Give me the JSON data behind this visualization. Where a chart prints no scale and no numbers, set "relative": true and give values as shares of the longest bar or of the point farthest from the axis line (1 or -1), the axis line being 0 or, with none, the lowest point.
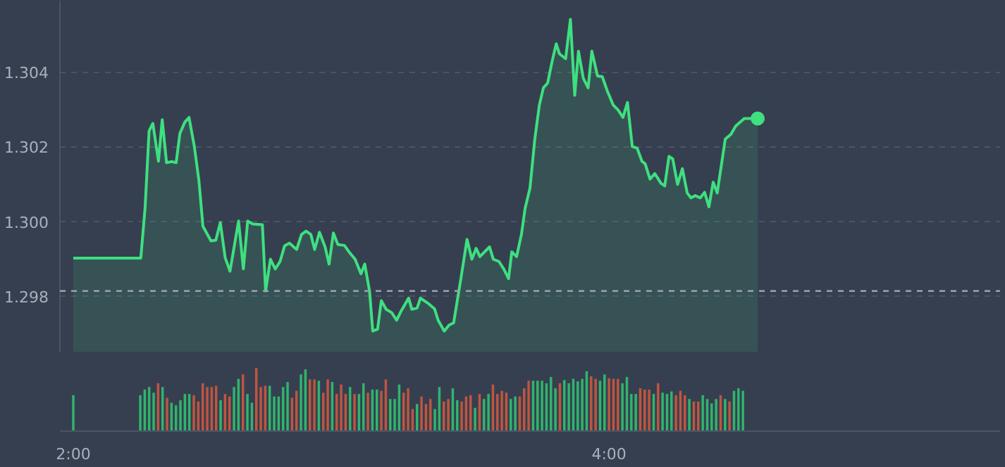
{
  "chart_data": [
    {
      "type": "area",
      "xlim": [
        1.95,
        5.46
      ],
      "ylim": [
        1.2965,
        1.3059
      ],
      "yticks": [
        {
          "value": 1.298,
          "label": "1.298"
        },
        {
          "value": 1.3,
          "label": "1.300"
        },
        {
          "value": 1.302,
          "label": "1.302"
        },
        {
          "value": 1.304,
          "label": "1.304"
        }
      ],
      "tick_labels": "y",
      "grid": "y",
      "ref_lines": [
        {
          "axis": "y",
          "value": 1.29814,
          "color": "#9aa3b2",
          "line_style": "dashed"
        }
      ],
      "series": [
        {
          "type": "area",
          "color": "#3ee07f",
          "x": [
            2.0,
            2.252,
            2.268,
            2.283,
            2.297,
            2.318,
            2.332,
            2.348,
            2.368,
            2.384,
            2.398,
            2.416,
            2.432,
            2.452,
            2.469,
            2.484,
            2.514,
            2.532,
            2.549,
            2.567,
            2.585,
            2.617,
            2.635,
            2.651,
            2.67,
            2.706,
            2.718,
            2.736,
            2.754,
            2.772,
            2.789,
            2.807,
            2.834,
            2.852,
            2.869,
            2.887,
            2.901,
            2.919,
            2.94,
            2.955,
            2.971,
            2.988,
            3.012,
            3.029,
            3.052,
            3.074,
            3.088,
            3.106,
            3.118,
            3.136,
            3.15,
            3.168,
            3.189,
            3.207,
            3.225,
            3.252,
            3.264,
            3.284,
            3.296,
            3.323,
            3.349,
            3.362,
            3.385,
            3.403,
            3.42,
            3.447,
            3.47,
            3.488,
            3.504,
            3.518,
            3.554,
            3.568,
            3.589,
            3.607,
            3.625,
            3.637,
            3.655,
            3.673,
            3.687,
            3.705,
            3.723,
            3.74,
            3.755,
            3.771,
            3.788,
            3.803,
            3.815,
            3.838,
            3.856,
            3.872,
            3.886,
            3.904,
            3.922,
            3.936,
            3.957,
            3.975,
            3.993,
            4.016,
            4.034,
            4.052,
            4.069,
            4.087,
            4.105,
            4.123,
            4.135,
            4.153,
            4.171,
            4.194,
            4.208,
            4.224,
            4.238,
            4.256,
            4.274,
            4.292,
            4.306,
            4.322,
            4.341,
            4.357,
            4.373,
            4.389,
            4.404,
            4.434,
            4.455,
            4.473,
            4.505,
            4.532,
            4.555
          ],
          "values": [
            1.29902,
            1.29902,
            1.30036,
            1.30242,
            1.30262,
            1.30161,
            1.30272,
            1.30157,
            1.3016,
            1.30157,
            1.30235,
            1.30265,
            1.30278,
            1.302,
            1.30109,
            1.29987,
            1.29948,
            1.2995,
            1.29997,
            1.29903,
            1.29867,
            1.30001,
            1.29873,
            1.30001,
            1.29993,
            1.29991,
            1.29814,
            1.29899,
            1.29873,
            1.29893,
            1.29935,
            1.29942,
            1.29925,
            1.29965,
            1.29974,
            1.29965,
            1.29925,
            1.29971,
            1.29932,
            1.29886,
            1.29969,
            1.29938,
            1.29936,
            1.29919,
            1.29899,
            1.2986,
            1.29886,
            1.29814,
            1.29707,
            1.29712,
            1.29788,
            1.29765,
            1.29756,
            1.29736,
            1.29762,
            1.29795,
            1.29765,
            1.29769,
            1.29795,
            1.29782,
            1.29766,
            1.29736,
            1.29707,
            1.29723,
            1.29729,
            1.29847,
            1.29952,
            1.29899,
            1.29928,
            1.29906,
            1.29932,
            1.29899,
            1.29893,
            1.29873,
            1.29847,
            1.29919,
            1.29906,
            1.29965,
            1.30036,
            1.30089,
            1.3022,
            1.30311,
            1.30357,
            1.3037,
            1.30429,
            1.30475,
            1.30448,
            1.30435,
            1.3054,
            1.30337,
            1.30455,
            1.30383,
            1.30357,
            1.30455,
            1.30389,
            1.30387,
            1.3035,
            1.30311,
            1.30298,
            1.30278,
            1.30318,
            1.302,
            1.30196,
            1.30161,
            1.30154,
            1.30113,
            1.30128,
            1.30102,
            1.30095,
            1.30174,
            1.30167,
            1.30099,
            1.30141,
            1.30076,
            1.30063,
            1.30069,
            1.30063,
            1.30078,
            1.30039,
            1.30105,
            1.30076,
            1.3022,
            1.30233,
            1.30255,
            1.30275,
            1.30275,
            1.30275
          ]
        },
        {
          "type": "scatter",
          "color": "#3ee07f",
          "marker": "circle",
          "x": [
            4.555
          ],
          "values": [
            1.30275
          ]
        }
      ]
    },
    {
      "type": "bar",
      "relative": true,
      "xlim": [
        1.95,
        5.46
      ],
      "xticks": [
        {
          "value": 2,
          "label": "2:00"
        },
        {
          "value": 4,
          "label": "4:00"
        }
      ],
      "tick_labels": "x",
      "x": [
        2.0,
        2.25,
        2.2667,
        2.2833,
        2.3,
        2.3167,
        2.3333,
        2.35,
        2.3667,
        2.3833,
        2.4,
        2.4167,
        2.4333,
        2.45,
        2.4667,
        2.4833,
        2.5,
        2.5167,
        2.5333,
        2.55,
        2.5667,
        2.5833,
        2.6,
        2.6167,
        2.6333,
        2.65,
        2.6667,
        2.6833,
        2.7,
        2.7167,
        2.7333,
        2.75,
        2.7667,
        2.7833,
        2.8,
        2.8167,
        2.8333,
        2.85,
        2.8667,
        2.8833,
        2.9,
        2.9167,
        2.9333,
        2.95,
        2.9667,
        2.9833,
        3.0,
        3.0167,
        3.0333,
        3.05,
        3.0667,
        3.0833,
        3.1,
        3.1167,
        3.1333,
        3.15,
        3.1667,
        3.1833,
        3.2,
        3.2167,
        3.2333,
        3.25,
        3.2667,
        3.2833,
        3.3,
        3.3167,
        3.3333,
        3.35,
        3.3667,
        3.3833,
        3.4,
        3.4167,
        3.4333,
        3.45,
        3.4667,
        3.4833,
        3.5,
        3.5167,
        3.5333,
        3.55,
        3.5667,
        3.5833,
        3.6,
        3.6167,
        3.6333,
        3.65,
        3.6667,
        3.6833,
        3.7,
        3.7167,
        3.7333,
        3.75,
        3.7667,
        3.7833,
        3.8,
        3.8167,
        3.8333,
        3.85,
        3.8667,
        3.8833,
        3.9,
        3.9167,
        3.9333,
        3.95,
        3.9667,
        3.9833,
        4.0,
        4.0167,
        4.0333,
        4.05,
        4.0667,
        4.0833,
        4.1,
        4.1167,
        4.1333,
        4.15,
        4.1667,
        4.1833,
        4.2,
        4.2167,
        4.2333,
        4.25,
        4.2667,
        4.2833,
        4.3,
        4.3167,
        4.3333,
        4.35,
        4.3667,
        4.3833,
        4.4,
        4.4167,
        4.4333,
        4.45,
        4.4667,
        4.4833,
        4.5
      ],
      "values": [
        0.57,
        0.57,
        0.66,
        0.7,
        0.61,
        0.76,
        0.7,
        0.53,
        0.45,
        0.41,
        0.49,
        0.59,
        0.59,
        0.57,
        0.47,
        0.76,
        0.7,
        0.7,
        0.72,
        0.49,
        0.59,
        0.55,
        0.7,
        0.83,
        0.9,
        0.59,
        0.45,
        1.0,
        0.7,
        0.72,
        0.72,
        0.55,
        0.55,
        0.7,
        0.78,
        0.53,
        0.64,
        0.9,
        0.98,
        0.82,
        0.82,
        0.8,
        0.61,
        0.82,
        0.78,
        0.59,
        0.74,
        0.59,
        0.7,
        0.59,
        0.59,
        0.76,
        0.61,
        0.66,
        0.66,
        0.64,
        0.82,
        0.51,
        0.51,
        0.74,
        0.61,
        0.68,
        0.35,
        0.43,
        0.55,
        0.43,
        0.51,
        0.35,
        0.7,
        0.47,
        0.51,
        0.68,
        0.49,
        0.47,
        0.55,
        0.57,
        0.37,
        0.59,
        0.51,
        0.59,
        0.74,
        0.59,
        0.64,
        0.61,
        0.51,
        0.55,
        0.55,
        0.68,
        0.8,
        0.8,
        0.8,
        0.8,
        0.76,
        0.86,
        0.68,
        0.76,
        0.81,
        0.76,
        0.83,
        0.79,
        0.83,
        0.95,
        0.87,
        0.83,
        0.8,
        0.9,
        0.84,
        0.83,
        0.83,
        0.76,
        0.86,
        0.59,
        0.59,
        0.68,
        0.66,
        0.66,
        0.59,
        0.76,
        0.61,
        0.59,
        0.63,
        0.57,
        0.64,
        0.57,
        0.51,
        0.47,
        0.47,
        0.57,
        0.51,
        0.44,
        0.51,
        0.57,
        0.51,
        0.47,
        0.64,
        0.68,
        0.64
      ],
      "colors": [
        "#2fb56c",
        "#2fb56c",
        "#2fb56c",
        "#2fb56c",
        "#2fb56c",
        "#c0553f",
        "#2fb56c",
        "#c0553f",
        "#2fb56c",
        "#2fb56c",
        "#2fb56c",
        "#2fb56c",
        "#2fb56c",
        "#c0553f",
        "#c0553f",
        "#c0553f",
        "#c0553f",
        "#c0553f",
        "#c0553f",
        "#2fb56c",
        "#c0553f",
        "#c0553f",
        "#2fb56c",
        "#2fb56c",
        "#c0553f",
        "#2fb56c",
        "#2fb56c",
        "#c0553f",
        "#c0553f",
        "#c0553f",
        "#2fb56c",
        "#2fb56c",
        "#2fb56c",
        "#2fb56c",
        "#2fb56c",
        "#c0553f",
        "#c0553f",
        "#2fb56c",
        "#2fb56c",
        "#c0553f",
        "#c0553f",
        "#2fb56c",
        "#c0553f",
        "#c0553f",
        "#2fb56c",
        "#c0553f",
        "#c0553f",
        "#c0553f",
        "#2fb56c",
        "#c0553f",
        "#2fb56c",
        "#2fb56c",
        "#c0553f",
        "#2fb56c",
        "#2fb56c",
        "#c0553f",
        "#c0553f",
        "#2fb56c",
        "#2fb56c",
        "#2fb56c",
        "#c0553f",
        "#c0553f",
        "#c0553f",
        "#2fb56c",
        "#c0553f",
        "#c0553f",
        "#c0553f",
        "#2fb56c",
        "#2fb56c",
        "#c0553f",
        "#c0553f",
        "#2fb56c",
        "#2fb56c",
        "#c0553f",
        "#c0553f",
        "#c0553f",
        "#2fb56c",
        "#c0553f",
        "#2fb56c",
        "#2fb56c",
        "#c0553f",
        "#c0553f",
        "#c0553f",
        "#c0553f",
        "#2fb56c",
        "#2fb56c",
        "#c0553f",
        "#c0553f",
        "#c0553f",
        "#2fb56c",
        "#2fb56c",
        "#2fb56c",
        "#2fb56c",
        "#2fb56c",
        "#2fb56c",
        "#c0553f",
        "#2fb56c",
        "#2fb56c",
        "#2fb56c",
        "#2fb56c",
        "#2fb56c",
        "#2fb56c",
        "#c0553f",
        "#c0553f",
        "#2fb56c",
        "#2fb56c",
        "#c0553f",
        "#c0553f",
        "#c0553f",
        "#2fb56c",
        "#2fb56c",
        "#2fb56c",
        "#2fb56c",
        "#c0553f",
        "#c0553f",
        "#c0553f",
        "#2fb56c",
        "#c0553f",
        "#2fb56c",
        "#2fb56c",
        "#2fb56c",
        "#c0553f",
        "#c0553f",
        "#c0553f",
        "#2fb56c",
        "#c0553f",
        "#c0553f",
        "#2fb56c",
        "#2fb56c",
        "#2fb56c",
        "#2fb56c",
        "#c0553f",
        "#2fb56c",
        "#c0553f",
        "#2fb56c",
        "#2fb56c",
        "#2fb56c"
      ]
    }
  ]
}
